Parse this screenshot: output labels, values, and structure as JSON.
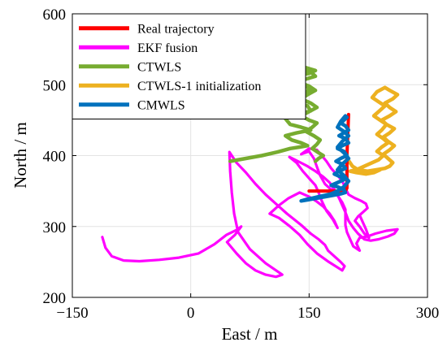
{
  "chart_data": {
    "type": "line",
    "xlabel": "East / m",
    "ylabel": "North / m",
    "xlim": [
      -150,
      300
    ],
    "ylim": [
      200,
      600
    ],
    "xticks": [
      -150,
      0,
      150,
      300
    ],
    "xtick_labels": [
      "−150",
      "0",
      "150",
      "300"
    ],
    "yticks": [
      200,
      300,
      400,
      500,
      600
    ],
    "ytick_labels": [
      "200",
      "300",
      "400",
      "500",
      "600"
    ],
    "grid": true,
    "legend_position": "top-left",
    "series": [
      {
        "name": "Real trajectory",
        "color": "#ff0000",
        "width": 4,
        "points": [
          [
            150,
            350
          ],
          [
            196,
            350
          ],
          [
            198,
            354
          ],
          [
            198,
            400
          ],
          [
            200,
            458
          ]
        ]
      },
      {
        "name": "EKF fusion",
        "color": "#ff00ff",
        "width": 3.2,
        "points": [
          [
            -112,
            285
          ],
          [
            -108,
            270
          ],
          [
            -100,
            258
          ],
          [
            -85,
            252
          ],
          [
            -65,
            251
          ],
          [
            -40,
            253
          ],
          [
            -15,
            256
          ],
          [
            10,
            262
          ],
          [
            30,
            275
          ],
          [
            45,
            288
          ],
          [
            58,
            295
          ],
          [
            64,
            300
          ],
          [
            56,
            288
          ],
          [
            46,
            278
          ],
          [
            58,
            262
          ],
          [
            70,
            248
          ],
          [
            82,
            238
          ],
          [
            95,
            232
          ],
          [
            108,
            229
          ],
          [
            116,
            232
          ],
          [
            95,
            248
          ],
          [
            75,
            268
          ],
          [
            60,
            292
          ],
          [
            55,
            318
          ],
          [
            52,
            348
          ],
          [
            50,
            378
          ],
          [
            49,
            405
          ],
          [
            58,
            390
          ],
          [
            70,
            376
          ],
          [
            82,
            360
          ],
          [
            95,
            345
          ],
          [
            108,
            332
          ],
          [
            122,
            318
          ],
          [
            140,
            302
          ],
          [
            152,
            290
          ],
          [
            162,
            282
          ],
          [
            170,
            274
          ],
          [
            174,
            266
          ],
          [
            182,
            258
          ],
          [
            190,
            250
          ],
          [
            195,
            244
          ],
          [
            192,
            238
          ],
          [
            175,
            250
          ],
          [
            160,
            262
          ],
          [
            148,
            275
          ],
          [
            138,
            288
          ],
          [
            126,
            300
          ],
          [
            112,
            312
          ],
          [
            100,
            318
          ],
          [
            112,
            330
          ],
          [
            124,
            340
          ],
          [
            138,
            348
          ],
          [
            150,
            342
          ],
          [
            160,
            335
          ],
          [
            168,
            328
          ],
          [
            176,
            318
          ],
          [
            182,
            308
          ],
          [
            186,
            298
          ],
          [
            180,
            310
          ],
          [
            172,
            322
          ],
          [
            166,
            336
          ],
          [
            162,
            348
          ],
          [
            158,
            358
          ],
          [
            150,
            368
          ],
          [
            142,
            378
          ],
          [
            134,
            390
          ],
          [
            125,
            398
          ],
          [
            136,
            392
          ],
          [
            148,
            385
          ],
          [
            158,
            378
          ],
          [
            168,
            370
          ],
          [
            176,
            362
          ],
          [
            182,
            352
          ],
          [
            188,
            340
          ],
          [
            192,
            330
          ],
          [
            196,
            320
          ],
          [
            200,
            308
          ],
          [
            206,
            298
          ],
          [
            212,
            290
          ],
          [
            220,
            282
          ],
          [
            228,
            280
          ],
          [
            238,
            282
          ],
          [
            250,
            286
          ],
          [
            258,
            290
          ],
          [
            262,
            296
          ],
          [
            248,
            294
          ],
          [
            234,
            290
          ],
          [
            224,
            286
          ],
          [
            214,
            284
          ],
          [
            210,
            276
          ],
          [
            214,
            266
          ],
          [
            206,
            272
          ],
          [
            202,
            282
          ],
          [
            198,
            292
          ],
          [
            196,
            302
          ],
          [
            196,
            312
          ],
          [
            196,
            324
          ],
          [
            192,
            334
          ],
          [
            186,
            344
          ],
          [
            178,
            352
          ],
          [
            170,
            360
          ],
          [
            164,
            372
          ],
          [
            160,
            384
          ],
          [
            156,
            396
          ],
          [
            150,
            406
          ],
          [
            140,
            402
          ],
          [
            150,
            410
          ],
          [
            160,
            408
          ],
          [
            166,
            400
          ],
          [
            172,
            392
          ],
          [
            178,
            382
          ],
          [
            186,
            372
          ],
          [
            192,
            364
          ],
          [
            196,
            354
          ],
          [
            200,
            345
          ],
          [
            208,
            340
          ],
          [
            216,
            336
          ],
          [
            222,
            332
          ],
          [
            224,
            326
          ],
          [
            218,
            320
          ],
          [
            212,
            314
          ],
          [
            208,
            308
          ],
          [
            214,
            300
          ],
          [
            220,
            290
          ],
          [
            226,
            284
          ],
          [
            222,
            296
          ],
          [
            218,
            306
          ],
          [
            214,
            316
          ]
        ]
      },
      {
        "name": "CTWLS",
        "color": "#77ac30",
        "width": 4.5,
        "points": [
          [
            50,
            392
          ],
          [
            70,
            396
          ],
          [
            90,
            400
          ],
          [
            110,
            405
          ],
          [
            126,
            410
          ],
          [
            138,
            412
          ],
          [
            148,
            414
          ],
          [
            140,
            418
          ],
          [
            128,
            422
          ],
          [
            120,
            428
          ],
          [
            134,
            432
          ],
          [
            152,
            436
          ],
          [
            140,
            440
          ],
          [
            126,
            444
          ],
          [
            120,
            452
          ],
          [
            136,
            458
          ],
          [
            152,
            463
          ],
          [
            148,
            470
          ],
          [
            134,
            476
          ],
          [
            120,
            482
          ],
          [
            130,
            486
          ],
          [
            146,
            490
          ],
          [
            152,
            494
          ],
          [
            140,
            500
          ],
          [
            128,
            506
          ],
          [
            134,
            512
          ],
          [
            150,
            516
          ],
          [
            158,
            520
          ],
          [
            146,
            524
          ],
          [
            134,
            522
          ],
          [
            152,
            518
          ],
          [
            158,
            512
          ],
          [
            146,
            508
          ],
          [
            136,
            504
          ],
          [
            150,
            498
          ],
          [
            158,
            492
          ],
          [
            148,
            486
          ],
          [
            140,
            480
          ],
          [
            152,
            474
          ],
          [
            160,
            468
          ],
          [
            150,
            462
          ],
          [
            140,
            456
          ],
          [
            150,
            450
          ],
          [
            160,
            446
          ],
          [
            154,
            440
          ],
          [
            146,
            434
          ],
          [
            156,
            428
          ],
          [
            164,
            422
          ],
          [
            160,
            416
          ],
          [
            154,
            410
          ],
          [
            162,
            404
          ],
          [
            168,
            400
          ],
          [
            162,
            396
          ],
          [
            158,
            392
          ]
        ]
      },
      {
        "name": "CTWLS-1 initialization",
        "color": "#edb120",
        "width": 4.5,
        "points": [
          [
            200,
            393
          ],
          [
            205,
            385
          ],
          [
            212,
            380
          ],
          [
            224,
            378
          ],
          [
            236,
            380
          ],
          [
            246,
            382
          ],
          [
            252,
            385
          ],
          [
            256,
            390
          ],
          [
            250,
            396
          ],
          [
            244,
            402
          ],
          [
            252,
            408
          ],
          [
            258,
            414
          ],
          [
            250,
            420
          ],
          [
            244,
            426
          ],
          [
            252,
            432
          ],
          [
            258,
            438
          ],
          [
            248,
            444
          ],
          [
            242,
            450
          ],
          [
            252,
            456
          ],
          [
            260,
            462
          ],
          [
            252,
            468
          ],
          [
            246,
            474
          ],
          [
            256,
            480
          ],
          [
            262,
            486
          ],
          [
            252,
            492
          ],
          [
            246,
            496
          ],
          [
            236,
            490
          ],
          [
            230,
            482
          ],
          [
            238,
            476
          ],
          [
            246,
            470
          ],
          [
            238,
            462
          ],
          [
            232,
            456
          ],
          [
            240,
            450
          ],
          [
            248,
            444
          ],
          [
            242,
            436
          ],
          [
            236,
            430
          ],
          [
            244,
            424
          ],
          [
            250,
            418
          ],
          [
            242,
            412
          ],
          [
            236,
            406
          ],
          [
            244,
            400
          ],
          [
            238,
            394
          ],
          [
            230,
            390
          ],
          [
            220,
            385
          ],
          [
            210,
            380
          ],
          [
            202,
            378
          ],
          [
            210,
            376
          ],
          [
            222,
            374
          ],
          [
            232,
            376
          ],
          [
            240,
            380
          ]
        ]
      },
      {
        "name": "CMWLS",
        "color": "#0072bd",
        "width": 4.5,
        "points": [
          [
            140,
            336
          ],
          [
            150,
            338
          ],
          [
            160,
            340
          ],
          [
            170,
            342
          ],
          [
            180,
            344
          ],
          [
            190,
            346
          ],
          [
            196,
            348
          ],
          [
            194,
            352
          ],
          [
            186,
            356
          ],
          [
            178,
            358
          ],
          [
            186,
            362
          ],
          [
            194,
            366
          ],
          [
            190,
            370
          ],
          [
            182,
            374
          ],
          [
            188,
            378
          ],
          [
            196,
            382
          ],
          [
            192,
            388
          ],
          [
            184,
            392
          ],
          [
            190,
            396
          ],
          [
            198,
            400
          ],
          [
            194,
            406
          ],
          [
            186,
            410
          ],
          [
            192,
            414
          ],
          [
            200,
            418
          ],
          [
            196,
            424
          ],
          [
            188,
            428
          ],
          [
            194,
            432
          ],
          [
            200,
            436
          ],
          [
            196,
            442
          ],
          [
            190,
            446
          ],
          [
            194,
            450
          ],
          [
            198,
            454
          ],
          [
            196,
            456
          ],
          [
            190,
            448
          ],
          [
            186,
            440
          ],
          [
            194,
            434
          ],
          [
            200,
            428
          ],
          [
            192,
            420
          ],
          [
            186,
            412
          ],
          [
            194,
            404
          ],
          [
            200,
            396
          ],
          [
            192,
            388
          ],
          [
            186,
            380
          ],
          [
            194,
            372
          ],
          [
            200,
            364
          ],
          [
            194,
            356
          ],
          [
            186,
            350
          ],
          [
            178,
            346
          ],
          [
            170,
            344
          ],
          [
            162,
            342
          ],
          [
            154,
            340
          ],
          [
            146,
            338
          ],
          [
            140,
            336
          ]
        ]
      }
    ]
  }
}
